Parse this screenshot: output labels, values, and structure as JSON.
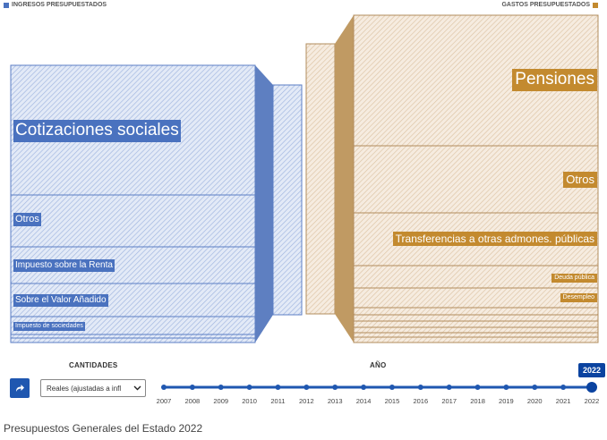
{
  "header": {
    "income_title": "INGRESOS PRESUPUESTADOS",
    "expense_title": "GASTOS PRESUPUESTADOS"
  },
  "colors": {
    "income_accent": "#4a72bf",
    "expense_accent": "#c38a2f",
    "timeline": "#1f57b0"
  },
  "income": {
    "categories": [
      {
        "label": "Cotizaciones sociales"
      },
      {
        "label": "Otros"
      },
      {
        "label": "Impuesto sobre la Renta"
      },
      {
        "label": "Sobre el Valor Añadido"
      },
      {
        "label": "Impuesto de sociedades"
      }
    ]
  },
  "expenses": {
    "categories": [
      {
        "label": "Pensiones"
      },
      {
        "label": "Otros"
      },
      {
        "label": "Transferencias a otras admones. públicas"
      },
      {
        "label": "Deuda pública"
      },
      {
        "label": "Desempleo"
      }
    ]
  },
  "controls": {
    "quantities_label": "CANTIDADES",
    "year_label": "AÑO",
    "select_value": "Reales (ajustadas a infl",
    "share_icon": "share-arrow-icon"
  },
  "timeline": {
    "years": [
      "2007",
      "2008",
      "2009",
      "2010",
      "2011",
      "2012",
      "2013",
      "2014",
      "2015",
      "2016",
      "2017",
      "2018",
      "2019",
      "2020",
      "2021",
      "2022"
    ],
    "selected": "2022"
  },
  "caption": "Presupuestos Generales del Estado 2022"
}
